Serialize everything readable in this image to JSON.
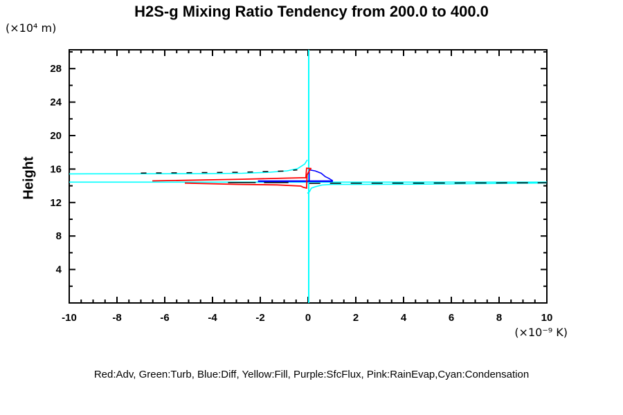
{
  "chart_data": {
    "type": "line",
    "title": "H2S-g Mixing Ratio Tendency from 200.0 to 400.0",
    "ylabel": "Height",
    "y_unit_label": "(×10⁴ m)",
    "x_unit_label": "(×10⁻⁹ K)",
    "legend_text": "Red:Adv, Green:Turb, Blue:Diff, Yellow:Fill, Purple:SfcFlux, Pink:RainEvap,Cyan:Condensation",
    "legend_position": "bottom",
    "grid": false,
    "xlim": [
      -10,
      10
    ],
    "ylim": [
      0,
      30.25
    ],
    "xticks": [
      -10,
      -8,
      -6,
      -4,
      -2,
      0,
      2,
      4,
      6,
      8,
      10
    ],
    "yticks": [
      4,
      8,
      12,
      16,
      20,
      24,
      28
    ],
    "x_minor_interval": 0.5,
    "y_minor_interval": 2,
    "colors": {
      "axis": "#000000",
      "adv": "#FF0000",
      "diff": "#0000FF",
      "condensation": "#00FFFF",
      "dashed_reference": "#000000"
    },
    "series": [
      {
        "name": "condensation-zero-line",
        "color": "#00FFFF",
        "width": 2,
        "points": [
          [
            0.03,
            30.25
          ],
          [
            0.03,
            0
          ]
        ]
      },
      {
        "name": "condensation-upper-branch",
        "color": "#00FFFF",
        "width": 1.6,
        "points": [
          [
            -10,
            15.42
          ],
          [
            -4.2,
            15.45
          ],
          [
            -2.75,
            15.5
          ],
          [
            -1.6,
            15.62
          ],
          [
            -0.87,
            15.79
          ],
          [
            -0.43,
            16.07
          ],
          [
            -0.14,
            16.6
          ],
          [
            -0.03,
            17.1
          ]
        ]
      },
      {
        "name": "condensation-lower-branch",
        "color": "#00FFFF",
        "width": 1.6,
        "points": [
          [
            -10,
            14.44
          ],
          [
            10,
            14.44
          ]
        ]
      },
      {
        "name": "condensation-dip-branch",
        "color": "#00FFFF",
        "width": 1.6,
        "points": [
          [
            -0.03,
            13.1
          ],
          [
            0.06,
            13.3
          ],
          [
            0.14,
            13.72
          ],
          [
            0.29,
            13.88
          ],
          [
            0.58,
            14.09
          ],
          [
            1.0,
            14.17
          ],
          [
            4.5,
            14.19
          ],
          [
            10,
            14.33
          ]
        ]
      },
      {
        "name": "diff-left-branch",
        "color": "#0000FF",
        "width": 2.6,
        "points": [
          [
            -2.1,
            14.55
          ],
          [
            1.04,
            14.55
          ]
        ]
      },
      {
        "name": "diff-spike",
        "color": "#0000FF",
        "width": 1.6,
        "points": [
          [
            0.05,
            14.55
          ],
          [
            0.05,
            15.9
          ],
          [
            0.3,
            15.78
          ],
          [
            0.55,
            15.5
          ],
          [
            0.72,
            15.1
          ],
          [
            0.86,
            14.9
          ],
          [
            1.04,
            14.6
          ]
        ]
      },
      {
        "name": "adv-curve",
        "color": "#FF0000",
        "width": 1.8,
        "points": [
          [
            -6.52,
            14.59
          ],
          [
            -5.16,
            14.65
          ],
          [
            -2.75,
            14.79
          ],
          [
            -0.87,
            14.92
          ],
          [
            -0.09,
            14.97
          ],
          [
            -0.06,
            16.1
          ],
          [
            0.14,
            16.07
          ],
          [
            0.1,
            16.02
          ],
          [
            -0.04,
            15.3
          ],
          [
            -0.05,
            14.6
          ],
          [
            -0.06,
            13.72
          ],
          [
            -0.2,
            13.82
          ],
          [
            -0.3,
            13.97
          ],
          [
            -1.3,
            14.11
          ],
          [
            -2.9,
            14.17
          ],
          [
            -5.16,
            14.32
          ]
        ]
      },
      {
        "name": "dashed-upper-reference",
        "color": "#000000",
        "width": 1.5,
        "dash": "8,14",
        "points": [
          [
            -7.0,
            15.52
          ],
          [
            -4.2,
            15.58
          ],
          [
            -2.75,
            15.62
          ],
          [
            -1.0,
            15.76
          ],
          [
            -0.45,
            15.9
          ]
        ]
      },
      {
        "name": "dashed-lower-left-reference",
        "color": "#000000",
        "width": 1.5,
        "dash": "40,12",
        "points": [
          [
            -3.35,
            14.38
          ],
          [
            -0.82,
            14.38
          ]
        ]
      },
      {
        "name": "dashed-lower-right-reference",
        "color": "#000000",
        "width": 1.5,
        "dash": "16,14",
        "points": [
          [
            0.05,
            14.28
          ],
          [
            0.9,
            14.3
          ],
          [
            10,
            14.36
          ]
        ]
      }
    ]
  }
}
